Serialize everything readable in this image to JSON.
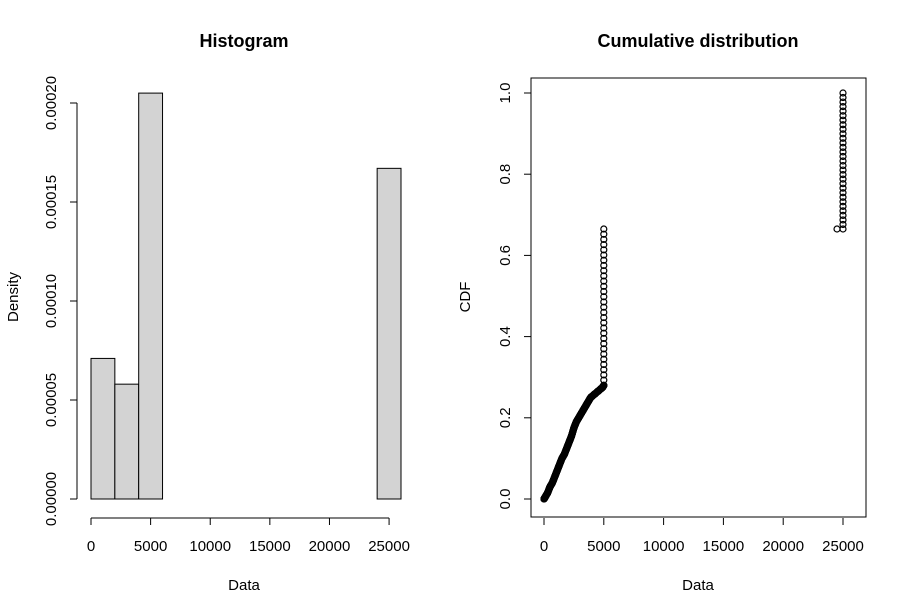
{
  "chart_data": [
    {
      "type": "bar",
      "title": "Histogram",
      "xlabel": "Data",
      "ylabel": "Density",
      "bin_edges": [
        0,
        2000,
        4000,
        6000,
        8000,
        10000,
        12000,
        14000,
        16000,
        18000,
        20000,
        22000,
        24000,
        26000
      ],
      "values": [
        7.1e-05,
        5.8e-05,
        0.000205,
        0,
        0,
        0,
        0,
        0,
        0,
        0,
        0,
        0,
        0.000167
      ],
      "xlim": [
        0,
        26000
      ],
      "ylim": [
        0,
        0.0002
      ],
      "x_ticks": [
        "0",
        "5000",
        "10000",
        "15000",
        "20000",
        "25000"
      ],
      "y_ticks": [
        "0.00000",
        "0.00005",
        "0.00010",
        "0.00015",
        "0.00020"
      ],
      "bar_color": "#d3d3d3",
      "grid": false
    },
    {
      "type": "scatter",
      "title": "Cumulative distribution",
      "xlabel": "Data",
      "ylabel": "CDF",
      "segments": [
        {
          "x": [
            0,
            100,
            300,
            500,
            700,
            900,
            1100,
            1300,
            1500,
            1700,
            1900,
            2100,
            2300,
            2500,
            2700,
            2900,
            3100,
            3300,
            3500,
            3700,
            3900,
            4100,
            4300,
            4500,
            4700,
            4900,
            5000
          ],
          "y": [
            0.0,
            0.005,
            0.015,
            0.03,
            0.04,
            0.055,
            0.07,
            0.085,
            0.1,
            0.11,
            0.125,
            0.14,
            0.155,
            0.175,
            0.19,
            0.2,
            0.21,
            0.22,
            0.23,
            0.24,
            0.25,
            0.255,
            0.26,
            0.265,
            0.27,
            0.275,
            0.28
          ]
        },
        {
          "x": [
            5000,
            5000
          ],
          "y": [
            0.28,
            0.665
          ]
        },
        {
          "x": [
            24500
          ],
          "y": [
            0.665
          ]
        },
        {
          "x": [
            25000,
            25000
          ],
          "y": [
            0.665,
            1.0
          ]
        }
      ],
      "xlim": [
        0,
        26000
      ],
      "ylim": [
        0,
        1.0
      ],
      "x_ticks": [
        "0",
        "5000",
        "10000",
        "15000",
        "20000",
        "25000"
      ],
      "y_ticks": [
        "0.0",
        "0.2",
        "0.4",
        "0.6",
        "0.8",
        "1.0"
      ],
      "point_style": "open-circle",
      "grid": false
    }
  ]
}
